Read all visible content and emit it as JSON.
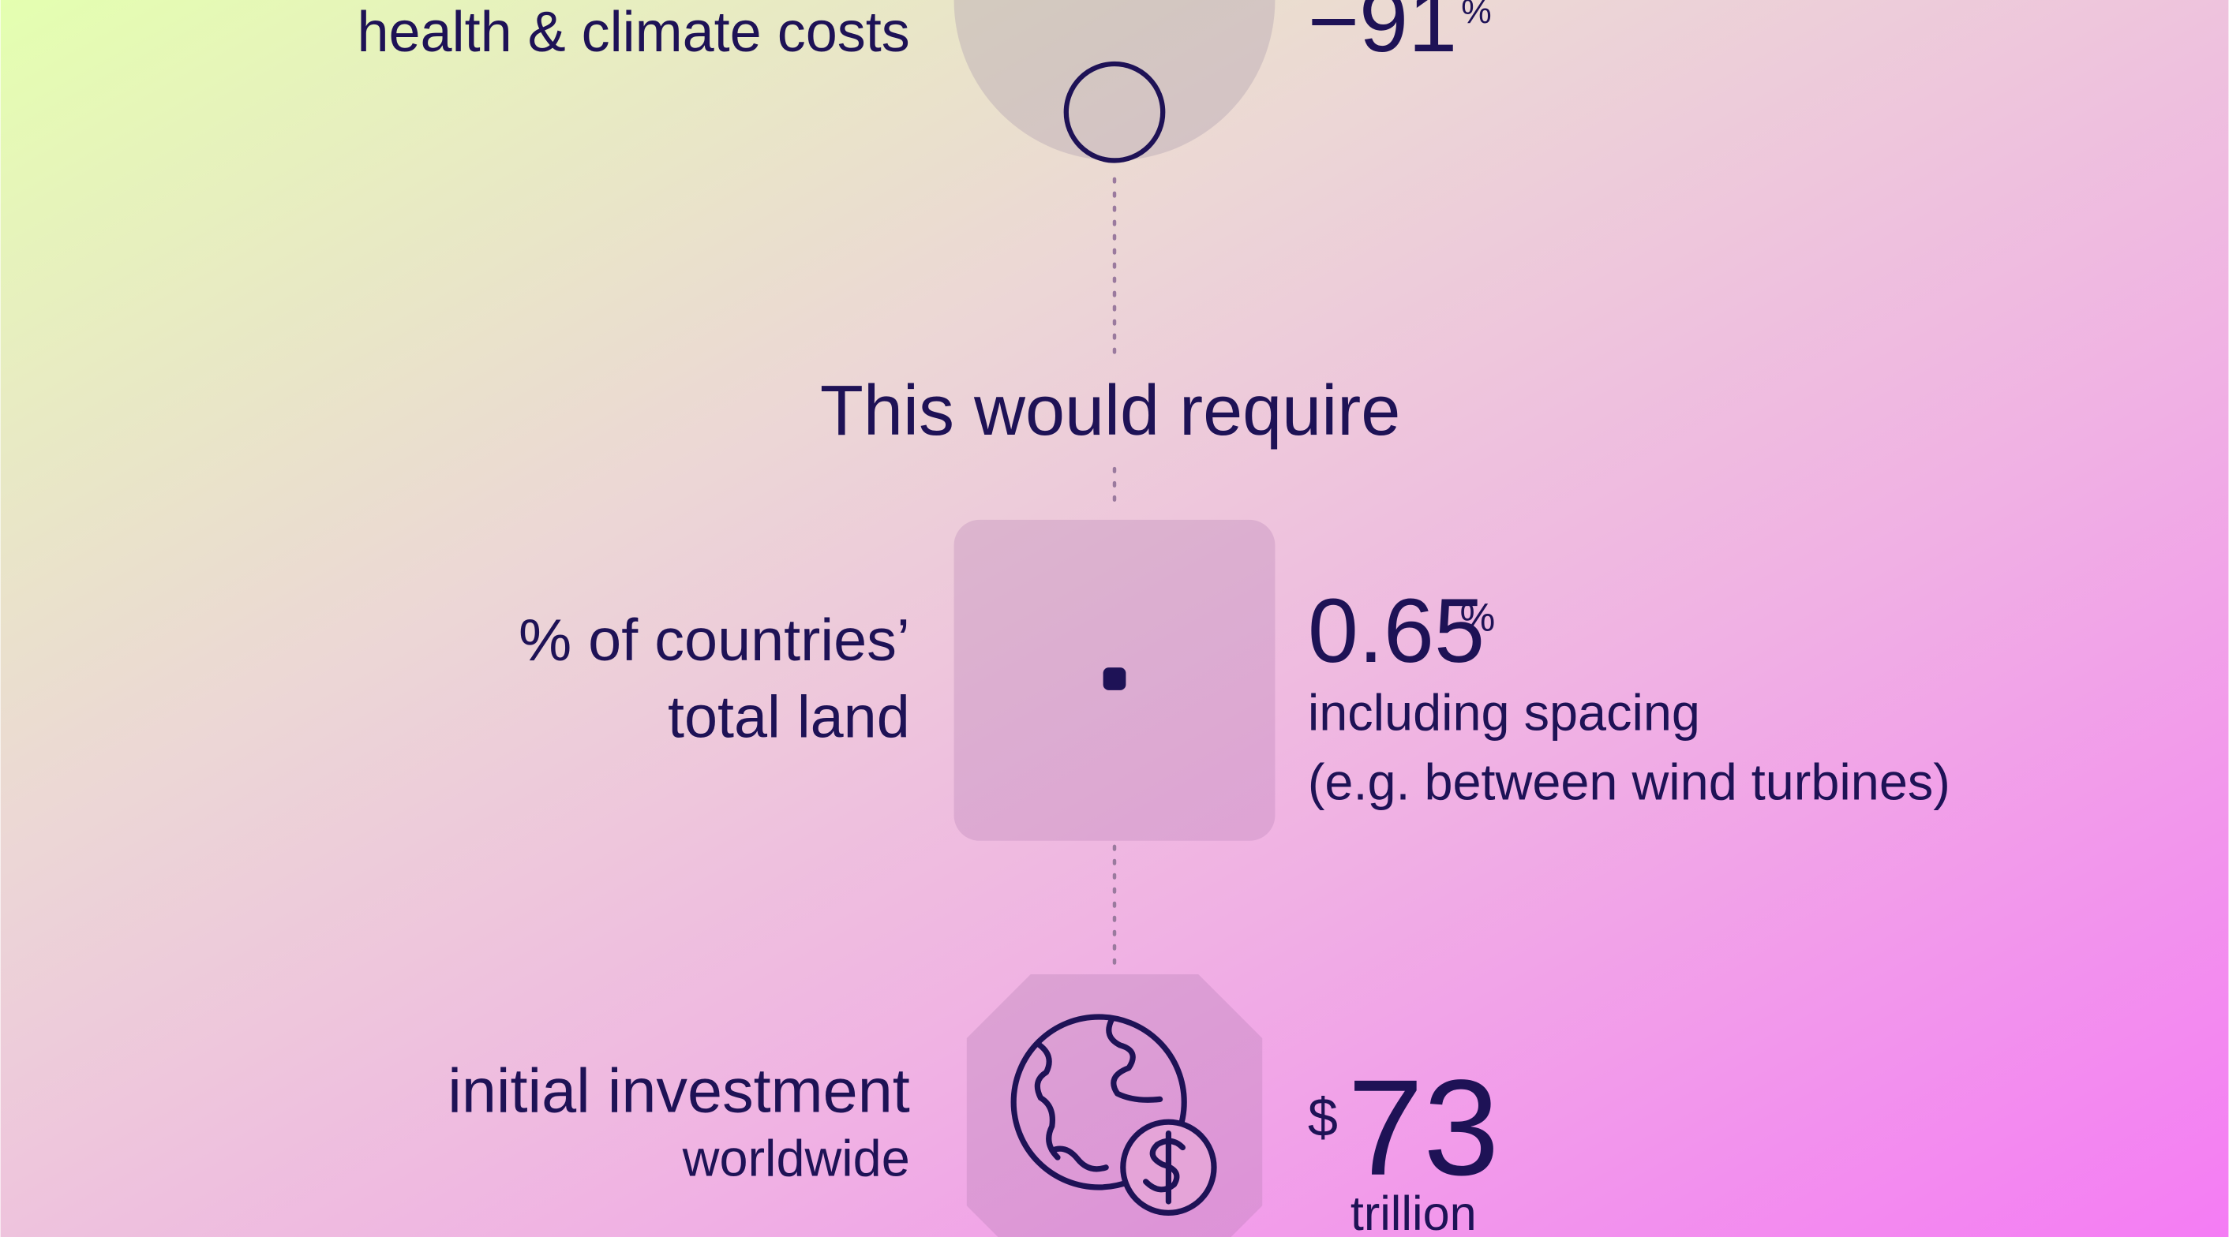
{
  "sections": [
    {
      "label": [
        "health & climate costs"
      ],
      "value": "−91",
      "unit": "%"
    },
    {
      "heading": "This would require"
    },
    {
      "label": [
        "% of countries’",
        "total land"
      ],
      "value": "0.65",
      "unit": "%",
      "notes": [
        "including spacing",
        "(e.g. between wind turbines)"
      ]
    },
    {
      "label": [
        "initial investment",
        "worldwide"
      ],
      "prefix": "$",
      "value": "73",
      "unit": "trillion"
    }
  ]
}
